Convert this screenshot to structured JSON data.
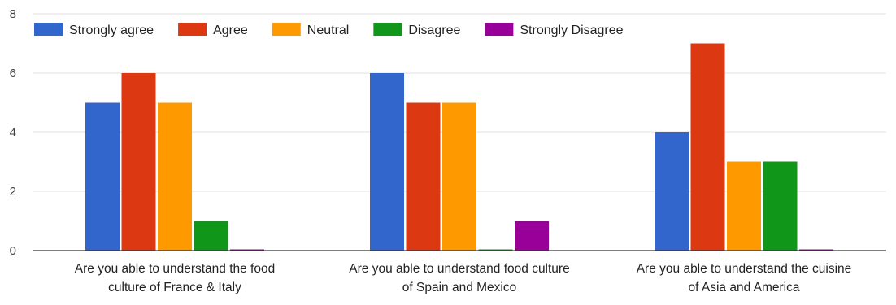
{
  "chart_data": {
    "type": "bar",
    "categories": [
      [
        "Are you able to understand the food",
        "culture of France & Italy"
      ],
      [
        "Are you able to understand food culture",
        "of Spain and Mexico"
      ],
      [
        "Are you able to understand the cuisine",
        "of Asia and America"
      ]
    ],
    "series": [
      {
        "name": "Strongly agree",
        "color": "#3366cc",
        "values": [
          5,
          6,
          4
        ]
      },
      {
        "name": "Agree",
        "color": "#dc3912",
        "values": [
          6,
          5,
          7
        ]
      },
      {
        "name": "Neutral",
        "color": "#ff9900",
        "values": [
          5,
          5,
          3
        ]
      },
      {
        "name": "Disagree",
        "color": "#109618",
        "values": [
          1,
          0,
          3
        ]
      },
      {
        "name": "Strongly Disagree",
        "color": "#990099",
        "values": [
          0,
          1,
          0
        ]
      }
    ],
    "ylim": [
      0,
      8
    ],
    "yticks": [
      0,
      2,
      4,
      6,
      8
    ],
    "grid": true,
    "legend_position": "top-left",
    "title": "",
    "xlabel": "",
    "ylabel": ""
  }
}
